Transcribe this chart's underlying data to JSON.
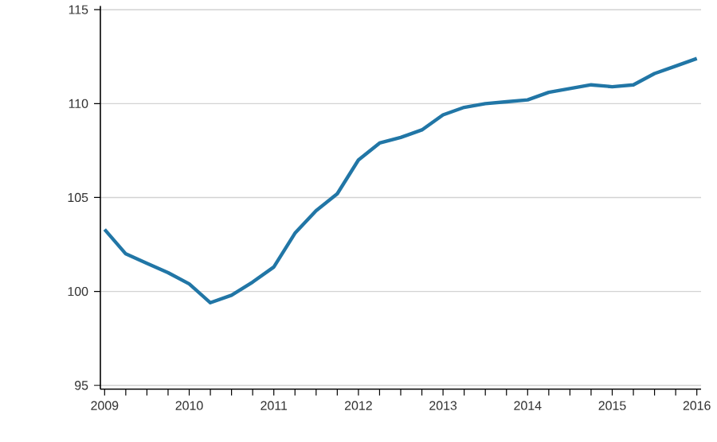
{
  "chart_data": {
    "type": "line",
    "x": [
      2009.0,
      2009.25,
      2009.5,
      2009.75,
      2010.0,
      2010.25,
      2010.5,
      2010.75,
      2011.0,
      2011.25,
      2011.5,
      2011.75,
      2012.0,
      2012.25,
      2012.5,
      2012.75,
      2013.0,
      2013.25,
      2013.5,
      2013.75,
      2014.0,
      2014.25,
      2014.5,
      2014.75,
      2015.0,
      2015.25,
      2015.5,
      2015.75,
      2016.0
    ],
    "values": [
      103.3,
      102.0,
      101.5,
      101.0,
      100.4,
      99.4,
      99.8,
      100.5,
      101.3,
      103.1,
      104.3,
      105.2,
      107.0,
      107.9,
      108.2,
      108.6,
      109.4,
      109.8,
      110.0,
      110.1,
      110.2,
      110.6,
      110.8,
      111.0,
      110.9,
      111.0,
      111.6,
      112.0,
      112.4
    ],
    "color": "#2176a6",
    "xlim": [
      2008.95,
      2016.05
    ],
    "ylim": [
      94.8,
      115.2
    ],
    "xticks": [
      2009,
      {
        "value": 2009.25,
        "label": null
      },
      {
        "value": 2009.5,
        "label": null
      },
      {
        "value": 2009.75,
        "label": null
      },
      2010,
      {
        "value": 2010.25,
        "label": null
      },
      {
        "value": 2010.5,
        "label": null
      },
      {
        "value": 2010.75,
        "label": null
      },
      2011,
      {
        "value": 2011.25,
        "label": null
      },
      {
        "value": 2011.5,
        "label": null
      },
      {
        "value": 2011.75,
        "label": null
      },
      2012,
      {
        "value": 2012.25,
        "label": null
      },
      {
        "value": 2012.5,
        "label": null
      },
      {
        "value": 2012.75,
        "label": null
      },
      2013,
      {
        "value": 2013.25,
        "label": null
      },
      {
        "value": 2013.5,
        "label": null
      },
      {
        "value": 2013.75,
        "label": null
      },
      2014,
      {
        "value": 2014.25,
        "label": null
      },
      {
        "value": 2014.5,
        "label": null
      },
      {
        "value": 2014.75,
        "label": null
      },
      2015,
      {
        "value": 2015.25,
        "label": null
      },
      {
        "value": 2015.5,
        "label": null
      },
      {
        "value": 2015.75,
        "label": null
      },
      2016
    ],
    "yticks": [
      95,
      100,
      105,
      110,
      115
    ],
    "grid": "y"
  }
}
